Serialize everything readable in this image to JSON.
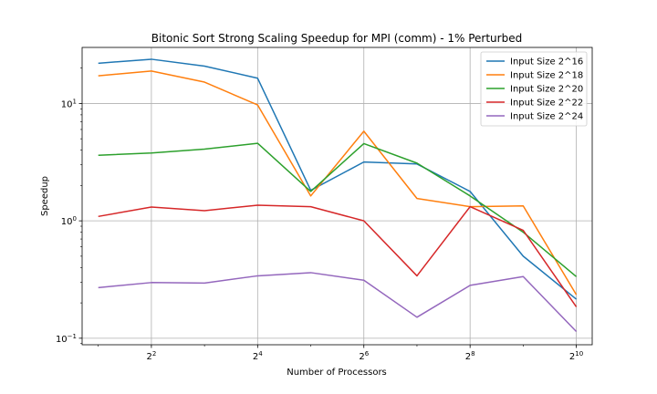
{
  "chart_data": {
    "type": "line",
    "title": "Bitonic Sort Strong Scaling Speedup for MPI (comm) - 1% Perturbed",
    "xlabel": "Number of Processors",
    "ylabel": "Speedup",
    "x_scale": "log2",
    "y_scale": "log10",
    "x": [
      2,
      4,
      8,
      16,
      32,
      64,
      128,
      256,
      512,
      1024
    ],
    "xlim": [
      1.62,
      1260
    ],
    "ylim": [
      0.088,
      30
    ],
    "x_ticks": [
      {
        "value": 4,
        "base": "2",
        "exp": "2"
      },
      {
        "value": 16,
        "base": "2",
        "exp": "4"
      },
      {
        "value": 64,
        "base": "2",
        "exp": "6"
      },
      {
        "value": 256,
        "base": "2",
        "exp": "8"
      },
      {
        "value": 1024,
        "base": "2",
        "exp": "10"
      }
    ],
    "y_ticks": [
      {
        "value": 0.1,
        "base": "10",
        "exp": "−1"
      },
      {
        "value": 1,
        "base": "10",
        "exp": "0"
      },
      {
        "value": 10,
        "base": "10",
        "exp": "1"
      }
    ],
    "grid": true,
    "legend_position": "top-right",
    "series": [
      {
        "name": "Input Size 2^16",
        "color": "#1f77b4",
        "values": [
          22.0,
          23.8,
          20.8,
          16.4,
          1.82,
          3.17,
          3.05,
          1.78,
          0.5,
          0.215
        ]
      },
      {
        "name": "Input Size 2^18",
        "color": "#ff7f0e",
        "values": [
          17.2,
          18.9,
          15.2,
          9.7,
          1.63,
          5.8,
          1.55,
          1.32,
          1.34,
          0.235
        ]
      },
      {
        "name": "Input Size 2^20",
        "color": "#2ca02c",
        "values": [
          3.62,
          3.78,
          4.08,
          4.58,
          1.78,
          4.55,
          3.1,
          1.63,
          0.8,
          0.335
        ]
      },
      {
        "name": "Input Size 2^22",
        "color": "#d62728",
        "values": [
          1.09,
          1.31,
          1.22,
          1.36,
          1.32,
          1.0,
          0.34,
          1.32,
          0.83,
          0.185
        ]
      },
      {
        "name": "Input Size 2^24",
        "color": "#9467bd",
        "values": [
          0.27,
          0.298,
          0.295,
          0.34,
          0.362,
          0.312,
          0.151,
          0.282,
          0.335,
          0.114
        ]
      }
    ]
  }
}
